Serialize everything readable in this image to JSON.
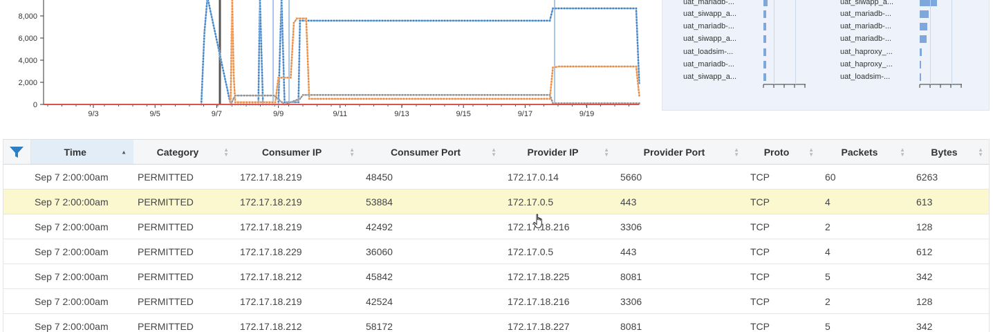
{
  "chart_data": {
    "type": "line",
    "y_ticks": [
      "0",
      "2,000",
      "4,000",
      "6,000",
      "8,000"
    ],
    "x_ticks": [
      "9/3",
      "9/5",
      "9/7",
      "9/9",
      "9/11",
      "9/13",
      "9/15",
      "9/17",
      "9/19"
    ],
    "ylim": [
      0,
      9600
    ],
    "grid": false,
    "series": [
      {
        "color": "#3b7fc4",
        "points": [
          [
            6.5,
            0
          ],
          [
            6.6,
            6400
          ],
          [
            6.7,
            9600
          ],
          [
            7.45,
            0
          ],
          [
            7.5,
            0
          ],
          [
            8.35,
            0
          ],
          [
            8.4,
            9600
          ],
          [
            8.5,
            0
          ],
          [
            9.0,
            0
          ],
          [
            9.1,
            9600
          ],
          [
            9.2,
            200
          ],
          [
            9.65,
            200
          ],
          [
            9.7,
            7500
          ],
          [
            17.8,
            7500
          ],
          [
            17.9,
            8600
          ],
          [
            20.6,
            8600
          ],
          [
            20.7,
            1900
          ]
        ]
      },
      {
        "color": "#e8873a",
        "points": [
          [
            7.45,
            0
          ],
          [
            7.5,
            9600
          ],
          [
            7.55,
            2600
          ],
          [
            7.6,
            200
          ],
          [
            8.9,
            200
          ],
          [
            9.0,
            2400
          ],
          [
            9.4,
            2400
          ],
          [
            9.5,
            7300
          ],
          [
            9.6,
            7700
          ],
          [
            9.9,
            7700
          ],
          [
            10.0,
            500
          ],
          [
            17.8,
            500
          ],
          [
            17.9,
            3300
          ],
          [
            18.1,
            3400
          ],
          [
            20.6,
            3400
          ],
          [
            20.7,
            800
          ]
        ]
      },
      {
        "color": "#8a8a8a",
        "points": [
          [
            7.45,
            0
          ],
          [
            7.6,
            800
          ],
          [
            8.85,
            800
          ],
          [
            9.2,
            0
          ],
          [
            9.7,
            500
          ],
          [
            9.8,
            850
          ],
          [
            17.8,
            850
          ],
          [
            17.9,
            100
          ],
          [
            20.7,
            100
          ]
        ]
      },
      {
        "color": "#d9534f",
        "points": [
          [
            -2.0,
            0
          ],
          [
            20.7,
            0
          ]
        ]
      }
    ]
  },
  "side_panel": {
    "left_labels": [
      "uat_mariadb-...",
      "uat_siwapp_a...",
      "uat_mariadb-...",
      "uat_siwapp_a...",
      "uat_loadsim-...",
      "uat_mariadb-...",
      "uat_siwapp_a..."
    ],
    "left_values": [
      0.4,
      0.3,
      0.3,
      0.3,
      0.3,
      0.3,
      0.3
    ],
    "right_labels": [
      "uat_siwapp_a...",
      "uat_mariadb-...",
      "uat_mariadb-...",
      "uat_mariadb-...",
      "uat_haproxy_...",
      "uat_haproxy_...",
      "uat_loadsim-..."
    ],
    "right_values": [
      1.8,
      0.9,
      0.8,
      0.7,
      0.2,
      0.15,
      0.1
    ]
  },
  "table": {
    "columns": [
      "Time",
      "Category",
      "Consumer IP",
      "Consumer Port",
      "Provider IP",
      "Provider Port",
      "Proto",
      "Packets",
      "Bytes"
    ],
    "rows": [
      [
        "Sep 7 2:00:00am",
        "PERMITTED",
        "172.17.18.219",
        "48450",
        "172.17.0.14",
        "5660",
        "TCP",
        "60",
        "6263"
      ],
      [
        "Sep 7 2:00:00am",
        "PERMITTED",
        "172.17.18.219",
        "53884",
        "172.17.0.5",
        "443",
        "TCP",
        "4",
        "613"
      ],
      [
        "Sep 7 2:00:00am",
        "PERMITTED",
        "172.17.18.219",
        "42492",
        "172.17.18.216",
        "3306",
        "TCP",
        "2",
        "128"
      ],
      [
        "Sep 7 2:00:00am",
        "PERMITTED",
        "172.17.18.229",
        "36060",
        "172.17.0.5",
        "443",
        "TCP",
        "4",
        "612"
      ],
      [
        "Sep 7 2:00:00am",
        "PERMITTED",
        "172.17.18.212",
        "45842",
        "172.17.18.225",
        "8081",
        "TCP",
        "5",
        "342"
      ],
      [
        "Sep 7 2:00:00am",
        "PERMITTED",
        "172.17.18.219",
        "42524",
        "172.17.18.216",
        "3306",
        "TCP",
        "2",
        "128"
      ],
      [
        "Sep 7 2:00:00am",
        "PERMITTED",
        "172.17.18.212",
        "58172",
        "172.17.18.227",
        "8081",
        "TCP",
        "5",
        "342"
      ]
    ]
  },
  "colors": {
    "header_bg": "#f5f6f8",
    "sorted_header_bg": "#e3edf8",
    "highlight_row": "#fbf8cf",
    "filter_icon": "#2f7fc1"
  }
}
